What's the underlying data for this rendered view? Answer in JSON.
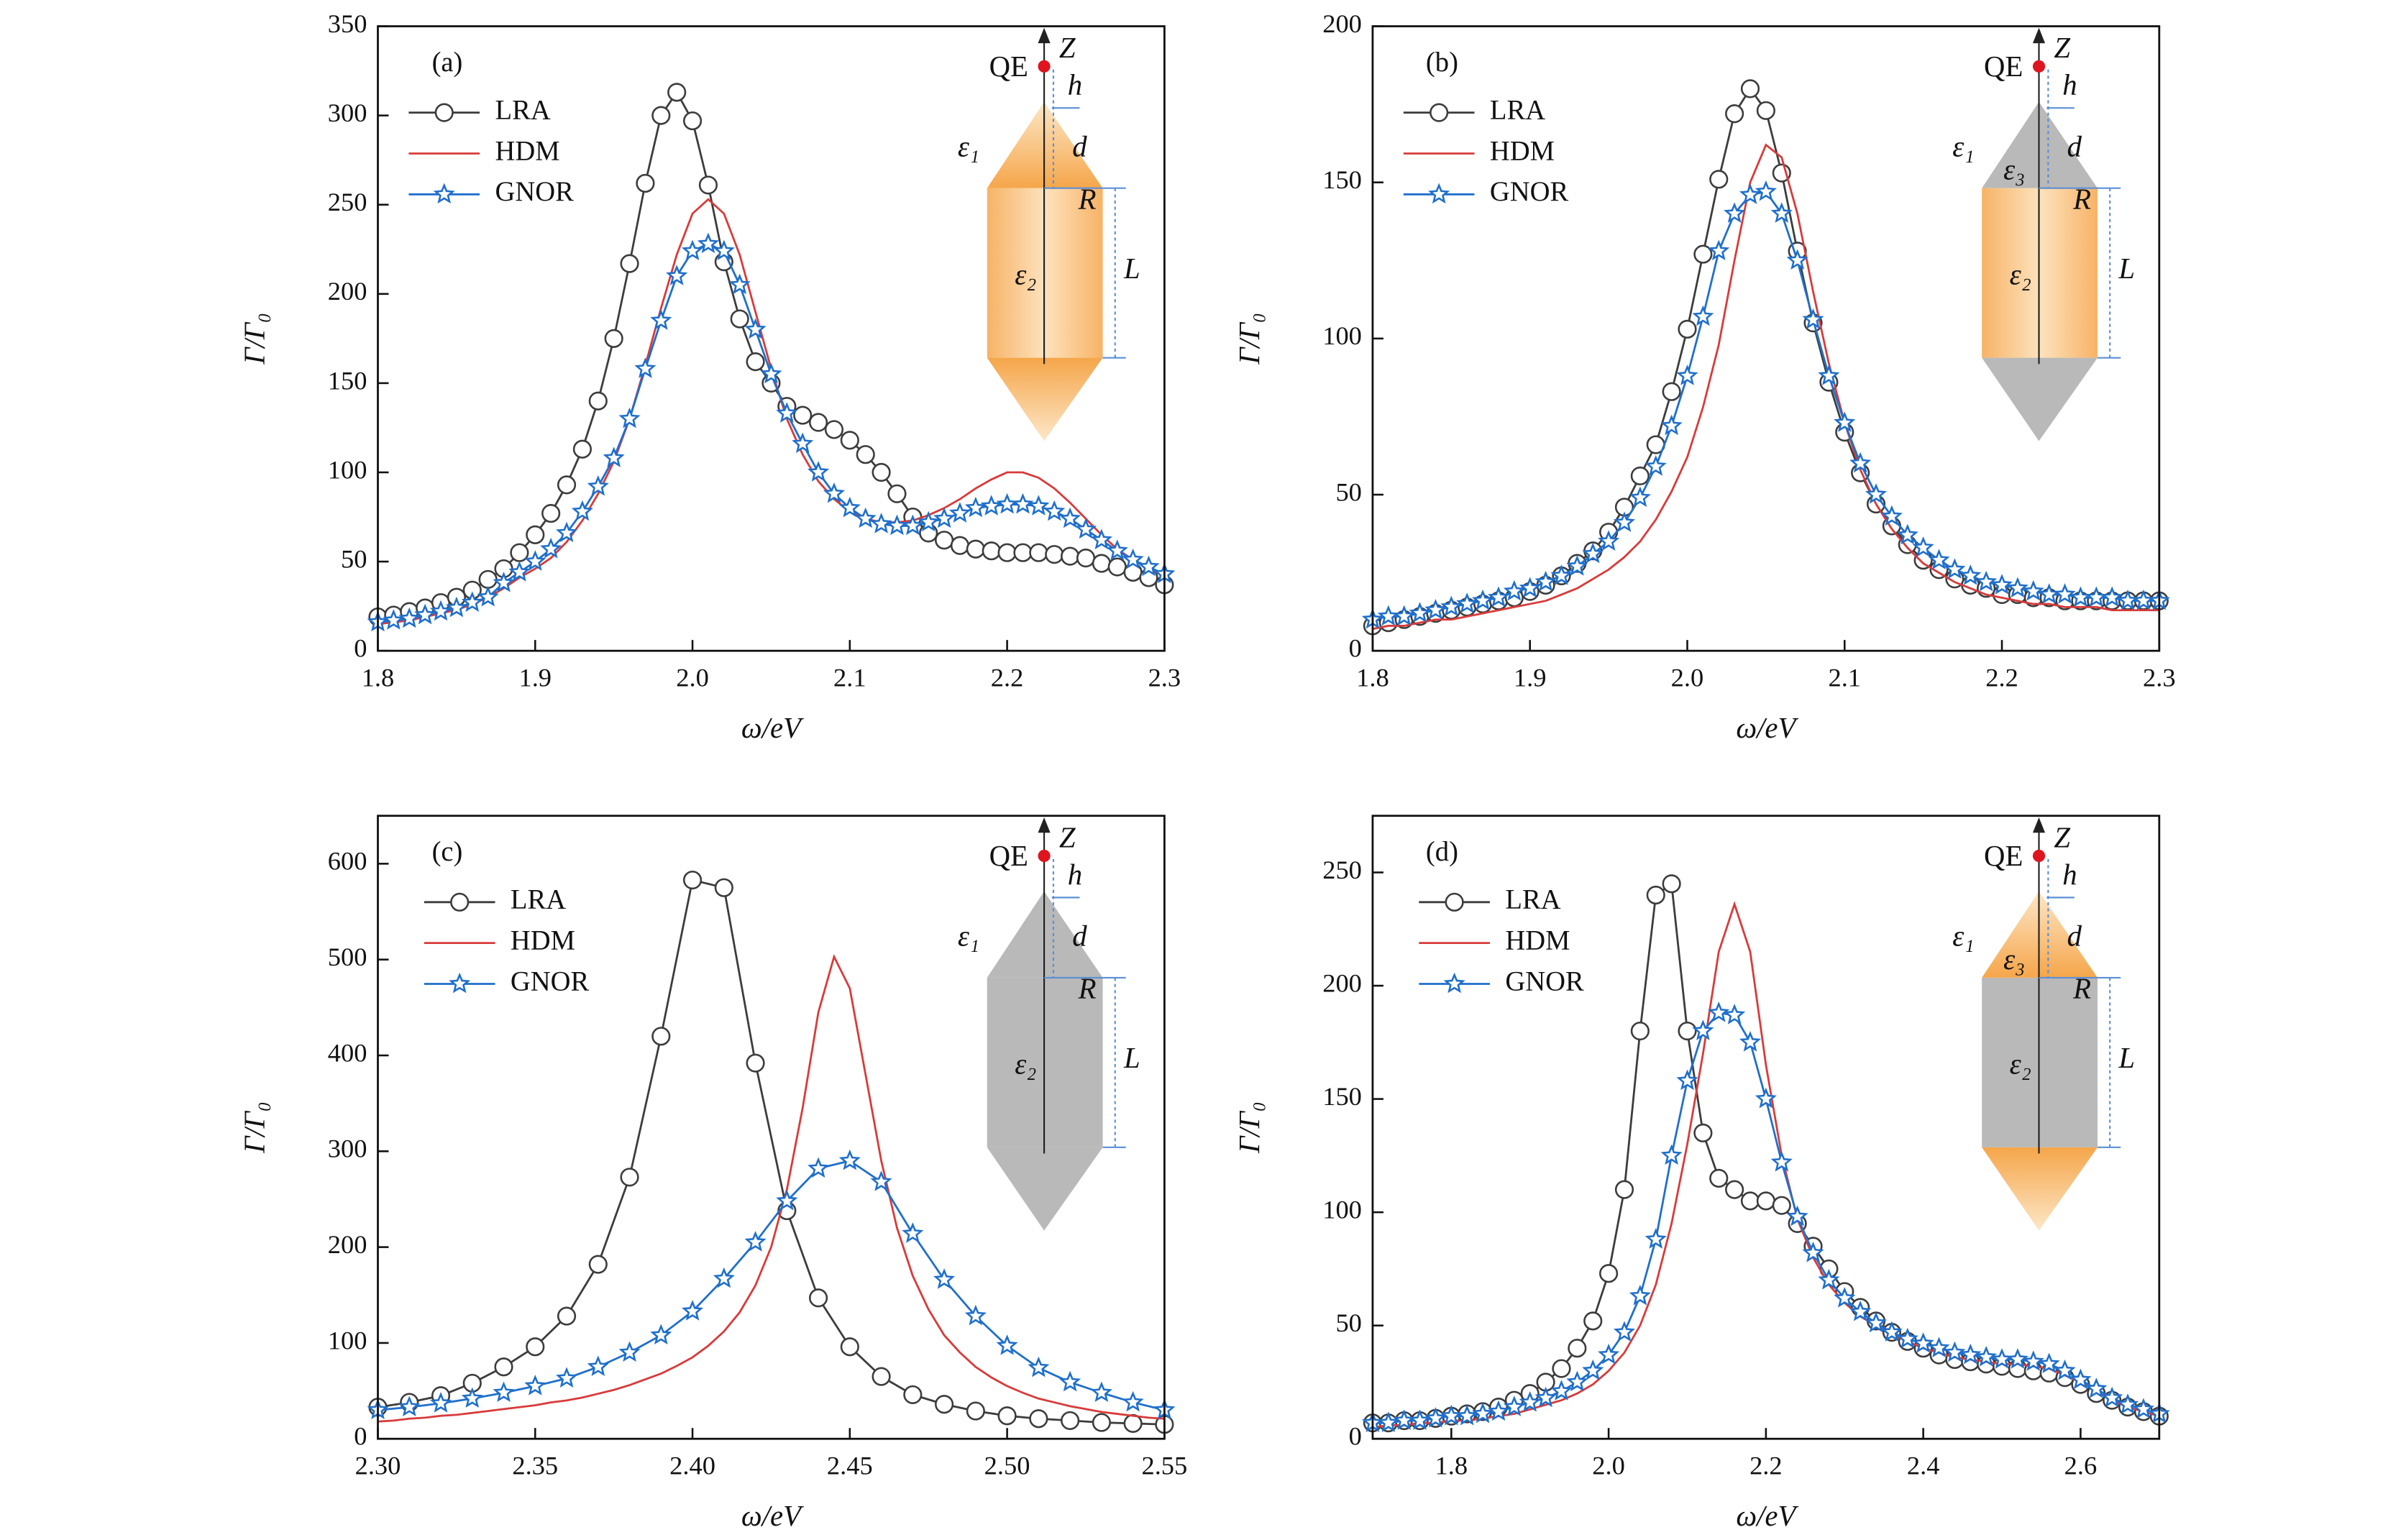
{
  "chart_data": [
    {
      "type": "line",
      "label": "(a)",
      "xlabel": "ω/eV",
      "ylabel": "Γ/Γ₀",
      "legend": "upper left",
      "x": [
        1.8,
        1.81,
        1.82,
        1.83,
        1.84,
        1.85,
        1.86,
        1.87,
        1.88,
        1.89,
        1.9,
        1.91,
        1.92,
        1.93,
        1.94,
        1.95,
        1.96,
        1.97,
        1.98,
        1.99,
        2,
        2.01,
        2.02,
        2.03,
        2.04,
        2.05,
        2.06,
        2.07,
        2.08,
        2.09,
        2.1,
        2.11,
        2.12,
        2.13,
        2.14,
        2.15,
        2.16,
        2.17,
        2.18,
        2.19,
        2.2,
        2.21,
        2.22,
        2.23,
        2.24,
        2.25,
        2.26,
        2.27,
        2.28,
        2.29,
        2.3
      ],
      "xlim": [
        1.8,
        2.3
      ],
      "xticks": [
        1.8,
        1.9,
        {
          "value": 2,
          "label": "2.0"
        },
        2.1,
        2.2,
        2.3
      ],
      "ylim": [
        0,
        350
      ],
      "yticks": [
        0,
        50,
        100,
        150,
        200,
        250,
        300,
        350
      ],
      "series": [
        {
          "name": "LRA",
          "color": "#3c3c3c",
          "marker": "circle",
          "values": [
            19,
            20,
            22,
            24,
            27,
            30,
            34,
            40,
            46,
            55,
            65,
            77,
            93,
            113,
            140,
            175,
            217,
            262,
            300,
            313,
            297,
            261,
            218,
            186,
            162,
            150,
            137,
            132,
            128,
            124,
            118,
            110,
            100,
            88,
            75,
            66,
            62,
            59,
            57,
            56,
            55,
            55,
            55,
            54,
            53,
            52,
            49,
            47,
            44,
            41,
            37
          ]
        },
        {
          "name": "HDM",
          "color": "#d93a3a",
          "values": [
            15,
            16,
            17,
            19,
            21,
            23,
            26,
            30,
            35,
            41,
            46,
            52,
            61,
            73,
            88,
            106,
            130,
            160,
            192,
            222,
            245,
            253,
            245,
            222,
            190,
            158,
            130,
            110,
            95,
            85,
            78,
            74,
            72,
            72,
            73,
            76,
            80,
            85,
            91,
            96,
            100,
            100,
            97,
            91,
            83,
            74,
            65,
            57,
            51,
            46,
            42
          ]
        },
        {
          "name": "GNOR",
          "color": "#1f6fcc",
          "marker": "star",
          "values": [
            16,
            17,
            18,
            20,
            22,
            24,
            27,
            30,
            38,
            44,
            50,
            57,
            66,
            78,
            92,
            108,
            130,
            158,
            185,
            210,
            224,
            228,
            224,
            205,
            180,
            155,
            133,
            116,
            100,
            88,
            80,
            74,
            71,
            70,
            70,
            72,
            74,
            77,
            80,
            81,
            82,
            82,
            81,
            78,
            74,
            68,
            62,
            56,
            51,
            47,
            43
          ]
        }
      ],
      "inset": {
        "emitter": "QE",
        "axis": "Z",
        "gap": "h",
        "height": "d",
        "radius": "R",
        "length": "L",
        "outer": "ε₁",
        "core": "ε₂"
      }
    },
    {
      "type": "line",
      "label": "(b)",
      "xlabel": "ω/eV",
      "ylabel": "Γ/Γ₀",
      "legend": "upper left",
      "x": [
        1.8,
        1.81,
        1.82,
        1.83,
        1.84,
        1.85,
        1.86,
        1.87,
        1.88,
        1.89,
        1.9,
        1.91,
        1.92,
        1.93,
        1.94,
        1.95,
        1.96,
        1.97,
        1.98,
        1.99,
        2,
        2.01,
        2.02,
        2.03,
        2.04,
        2.05,
        2.06,
        2.07,
        2.08,
        2.09,
        2.1,
        2.11,
        2.12,
        2.13,
        2.14,
        2.15,
        2.16,
        2.17,
        2.18,
        2.19,
        2.2,
        2.21,
        2.22,
        2.23,
        2.24,
        2.25,
        2.26,
        2.27,
        2.28,
        2.29,
        2.3
      ],
      "xlim": [
        1.8,
        2.3
      ],
      "xticks": [
        1.8,
        1.9,
        {
          "value": 2,
          "label": "2.0"
        },
        2.1,
        2.2,
        2.3
      ],
      "ylim": [
        0,
        200
      ],
      "yticks": [
        0,
        50,
        100,
        150,
        200
      ],
      "series": [
        {
          "name": "LRA",
          "color": "#3c3c3c",
          "marker": "circle",
          "values": [
            8,
            9,
            10,
            11,
            12,
            13,
            14,
            15,
            16,
            17,
            19,
            21,
            24,
            28,
            32,
            38,
            46,
            56,
            66,
            83,
            103,
            127,
            151,
            172,
            180,
            173,
            153,
            128,
            105,
            86,
            70,
            57,
            47,
            40,
            34,
            29,
            26,
            23,
            21,
            20,
            18,
            18,
            17,
            17,
            16,
            16,
            16,
            16,
            16,
            16,
            16
          ]
        },
        {
          "name": "HDM",
          "color": "#d93a3a",
          "values": [
            7,
            8,
            8,
            9,
            10,
            10,
            11,
            12,
            13,
            14,
            15,
            16,
            18,
            20,
            23,
            26,
            30,
            35,
            42,
            51,
            62,
            78,
            98,
            125,
            150,
            162,
            158,
            140,
            115,
            92,
            73,
            58,
            47,
            39,
            33,
            28,
            25,
            22,
            20,
            18,
            17,
            16,
            15,
            15,
            14,
            14,
            14,
            13,
            13,
            13,
            13
          ]
        },
        {
          "name": "GNOR",
          "color": "#1f6fcc",
          "marker": "star",
          "values": [
            10,
            11,
            11,
            12,
            13,
            14,
            15,
            16,
            17,
            19,
            20,
            22,
            24,
            27,
            31,
            35,
            41,
            49,
            59,
            72,
            88,
            107,
            128,
            140,
            146,
            147,
            140,
            125,
            106,
            88,
            73,
            60,
            50,
            43,
            37,
            33,
            29,
            26,
            24,
            22,
            21,
            20,
            19,
            18,
            18,
            17,
            17,
            17,
            16,
            16,
            16
          ]
        }
      ],
      "inset": {
        "emitter": "QE",
        "axis": "Z",
        "gap": "h",
        "height": "d",
        "radius": "R",
        "length": "L",
        "outer": "ε₁",
        "core": "ε₂",
        "tip": "ε₃"
      }
    },
    {
      "type": "line",
      "label": "(c)",
      "xlabel": "ω/eV",
      "ylabel": "Γ/Γ₀",
      "legend": "upper left",
      "x": [
        2.3,
        2.31,
        2.32,
        2.33,
        2.34,
        2.35,
        2.36,
        2.37,
        2.38,
        2.39,
        2.4,
        2.41,
        2.42,
        2.43,
        2.44,
        2.45,
        2.46,
        2.47,
        2.48,
        2.49,
        2.5,
        2.51,
        2.52,
        2.53,
        2.54,
        2.55
      ],
      "xlim": [
        2.3,
        2.55
      ],
      "xticks": [
        {
          "value": 2.3,
          "label": "2.30"
        },
        2.35,
        {
          "value": 2.4,
          "label": "2.40"
        },
        2.45,
        {
          "value": 2.5,
          "label": "2.50"
        },
        2.55
      ],
      "ylim": [
        0,
        650
      ],
      "yticks": [
        0,
        100,
        200,
        300,
        400,
        500,
        600
      ],
      "series": [
        {
          "name": "LRA",
          "color": "#3c3c3c",
          "marker": "circle",
          "values": [
            33,
            38,
            45,
            58,
            75,
            96,
            128,
            182,
            273,
            420,
            583,
            575,
            392,
            238,
            147,
            96,
            65,
            46,
            36,
            29,
            24,
            21,
            19,
            17,
            16,
            15
          ]
        },
        {
          "name": "HDM",
          "color": "#d93a3a",
          "x": [
            2.3,
            2.305,
            2.31,
            2.315,
            2.32,
            2.325,
            2.33,
            2.335,
            2.34,
            2.345,
            2.35,
            2.355,
            2.36,
            2.365,
            2.37,
            2.375,
            2.38,
            2.385,
            2.39,
            2.395,
            2.4,
            2.405,
            2.41,
            2.415,
            2.42,
            2.425,
            2.43,
            2.435,
            2.44,
            2.445,
            2.45,
            2.455,
            2.46,
            2.465,
            2.47,
            2.475,
            2.48,
            2.485,
            2.49,
            2.495,
            2.5,
            2.505,
            2.51,
            2.515,
            2.52,
            2.525,
            2.53,
            2.535,
            2.54,
            2.545,
            2.55
          ],
          "values": [
            18,
            19,
            21,
            22,
            24,
            25,
            27,
            29,
            31,
            33,
            35,
            38,
            40,
            43,
            47,
            51,
            56,
            62,
            68,
            76,
            85,
            97,
            112,
            132,
            160,
            200,
            260,
            345,
            445,
            503,
            470,
            380,
            290,
            220,
            170,
            135,
            108,
            90,
            75,
            64,
            55,
            48,
            42,
            38,
            34,
            31,
            28,
            26,
            24,
            22,
            21
          ]
        },
        {
          "name": "GNOR",
          "color": "#1f6fcc",
          "marker": "star",
          "values": [
            30,
            33,
            37,
            42,
            48,
            55,
            63,
            75,
            90,
            108,
            133,
            167,
            205,
            248,
            282,
            290,
            268,
            214,
            166,
            128,
            97,
            74,
            59,
            48,
            38,
            30
          ]
        }
      ],
      "inset": {
        "emitter": "QE",
        "axis": "Z",
        "gap": "h",
        "height": "d",
        "radius": "R",
        "length": "L",
        "outer": "ε₁",
        "core": "ε₂"
      }
    },
    {
      "type": "line",
      "label": "(d)",
      "xlabel": "ω/eV",
      "ylabel": "Γ/Γ₀",
      "legend": "upper left",
      "x": [
        1.7,
        1.72,
        1.74,
        1.76,
        1.78,
        1.8,
        1.82,
        1.84,
        1.86,
        1.88,
        1.9,
        1.92,
        1.94,
        1.96,
        1.98,
        2,
        2.02,
        2.04,
        2.06,
        2.08,
        2.1,
        2.12,
        2.14,
        2.16,
        2.18,
        2.2,
        2.22,
        2.24,
        2.26,
        2.28,
        2.3,
        2.32,
        2.34,
        2.36,
        2.38,
        2.4,
        2.42,
        2.44,
        2.46,
        2.48,
        2.5,
        2.52,
        2.54,
        2.56,
        2.58,
        2.6,
        2.62,
        2.64,
        2.66,
        2.68,
        2.7
      ],
      "xlim": [
        1.7,
        2.7
      ],
      "xticks": [
        1.8,
        {
          "value": 2,
          "label": "2.0"
        },
        2.2,
        2.4,
        2.6
      ],
      "ylim": [
        0,
        275
      ],
      "yticks": [
        0,
        50,
        100,
        150,
        200,
        250
      ],
      "series": [
        {
          "name": "LRA",
          "color": "#3c3c3c",
          "marker": "circle",
          "values": [
            7,
            7,
            8,
            8,
            9,
            10,
            11,
            12,
            14,
            17,
            20,
            25,
            31,
            40,
            52,
            73,
            110,
            180,
            240,
            245,
            180,
            135,
            115,
            110,
            105,
            105,
            103,
            95,
            85,
            75,
            65,
            58,
            52,
            47,
            43,
            40,
            37,
            35,
            34,
            33,
            32,
            31,
            30,
            29,
            27,
            24,
            20,
            17,
            14,
            12,
            10
          ]
        },
        {
          "name": "HDM",
          "color": "#d93a3a",
          "values": [
            5,
            6,
            6,
            7,
            7,
            8,
            8,
            9,
            10,
            11,
            13,
            15,
            17,
            20,
            24,
            30,
            38,
            50,
            68,
            95,
            130,
            170,
            215,
            236,
            215,
            165,
            125,
            97,
            80,
            68,
            60,
            54,
            50,
            46,
            43,
            40,
            38,
            36,
            35,
            34,
            33,
            33,
            32,
            31,
            28,
            25,
            21,
            17,
            14,
            12,
            10
          ]
        },
        {
          "name": "GNOR",
          "color": "#1f6fcc",
          "marker": "star",
          "values": [
            7,
            7,
            8,
            8,
            9,
            10,
            10,
            11,
            12,
            14,
            16,
            18,
            21,
            25,
            30,
            37,
            47,
            63,
            88,
            125,
            158,
            180,
            188,
            187,
            175,
            150,
            122,
            98,
            82,
            70,
            62,
            56,
            51,
            47,
            44,
            42,
            40,
            38,
            37,
            36,
            35,
            35,
            34,
            33,
            30,
            26,
            22,
            18,
            15,
            13,
            11
          ]
        }
      ],
      "inset": {
        "emitter": "QE",
        "axis": "Z",
        "gap": "h",
        "height": "d",
        "radius": "R",
        "length": "L",
        "outer": "ε₁",
        "core": "ε₂",
        "tip": "ε₃"
      }
    }
  ]
}
